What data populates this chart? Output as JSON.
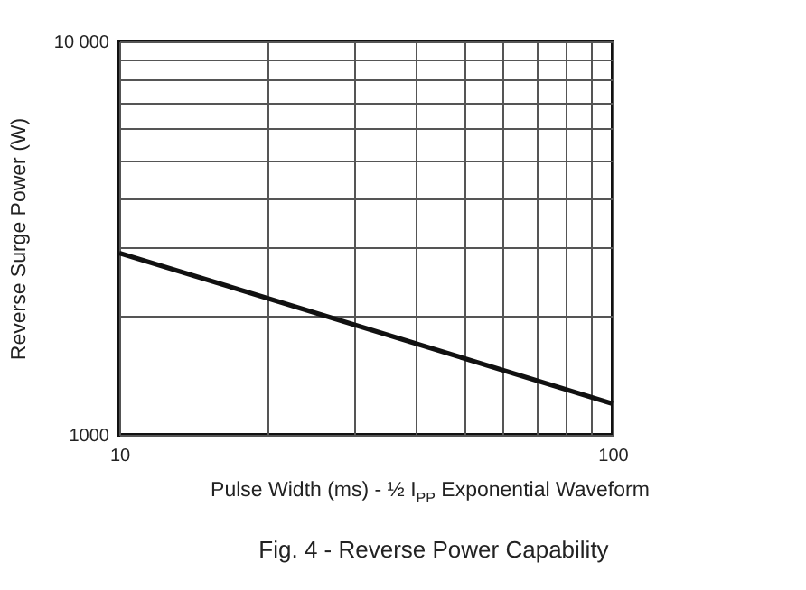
{
  "chart_data": {
    "type": "line",
    "title": "Fig. 4 - Reverse Power Capability",
    "xlabel": "Pulse Width (ms) - ½ I$_{PP}$ Exponential Waveform",
    "ylabel": "Reverse Surge Power (W)",
    "x": [
      10,
      100
    ],
    "series": [
      {
        "color": "#111111",
        "values": [
          2900,
          1200
        ]
      }
    ],
    "xlim": [
      10,
      100
    ],
    "ylim": [
      1000,
      10000
    ],
    "xticks": [
      10,
      {
        "value": 20,
        "label": null
      },
      {
        "value": 30,
        "label": null
      },
      {
        "value": 40,
        "label": null
      },
      {
        "value": 50,
        "label": null
      },
      {
        "value": 60,
        "label": null
      },
      {
        "value": 70,
        "label": null
      },
      {
        "value": 80,
        "label": null
      },
      {
        "value": 90,
        "label": null
      },
      100
    ],
    "yticks": [
      1000,
      {
        "value": 2000,
        "label": null
      },
      {
        "value": 3000,
        "label": null
      },
      {
        "value": 4000,
        "label": null
      },
      {
        "value": 5000,
        "label": null
      },
      {
        "value": 6000,
        "label": null
      },
      {
        "value": 7000,
        "label": null
      },
      {
        "value": 8000,
        "label": null
      },
      {
        "value": 9000,
        "label": null
      },
      {
        "value": 10000,
        "label": "10 000"
      }
    ],
    "log": "xy",
    "grid": true
  }
}
